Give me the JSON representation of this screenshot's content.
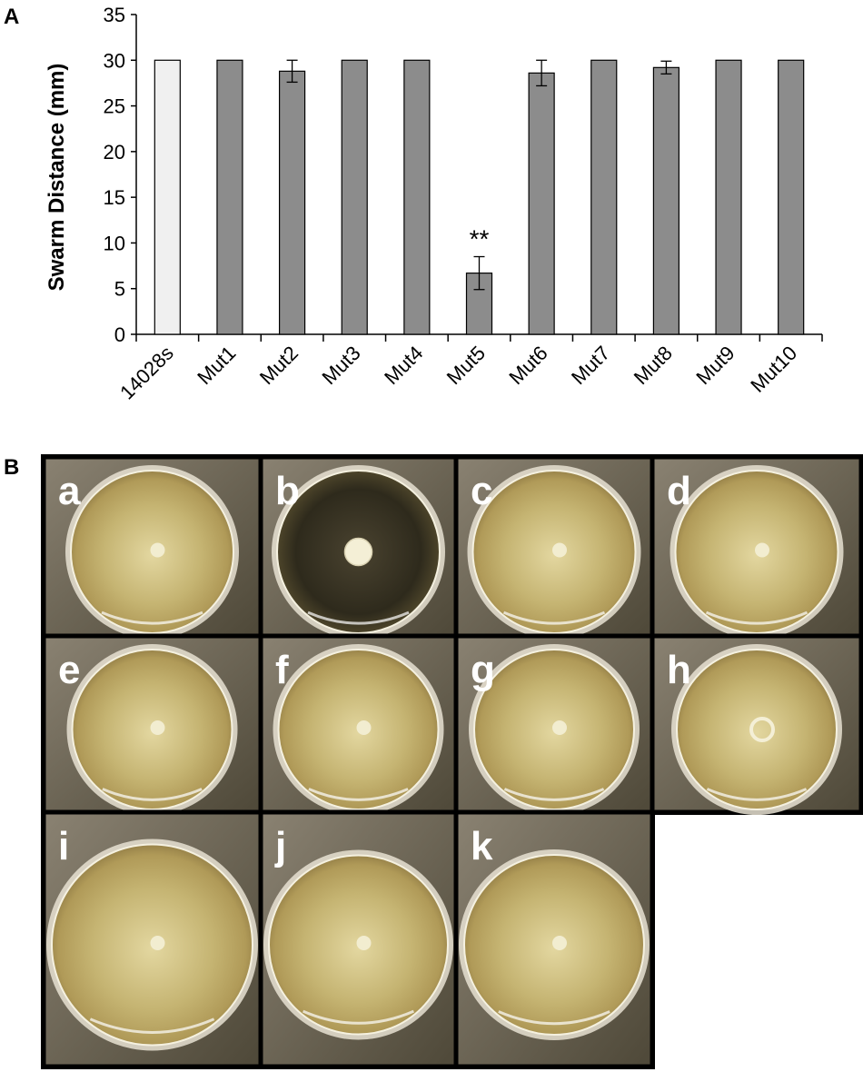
{
  "panel_labels": {
    "chart": "A",
    "photos": "B"
  },
  "chart_data": {
    "type": "bar",
    "title": "",
    "xlabel": "",
    "ylabel": "Swarm Distance (mm)",
    "ylim": [
      0,
      35
    ],
    "yticks": [
      0,
      5,
      10,
      15,
      20,
      25,
      30,
      35
    ],
    "categories": [
      "14028s",
      "Mut1",
      "Mut2",
      "Mut3",
      "Mut4",
      "Mut5",
      "Mut6",
      "Mut7",
      "Mut8",
      "Mut9",
      "Mut10"
    ],
    "values": [
      30,
      30,
      28.8,
      30,
      30,
      6.7,
      28.6,
      30,
      29.2,
      30,
      30
    ],
    "errors": [
      0,
      0,
      1.2,
      0,
      0,
      1.8,
      1.4,
      0,
      0.7,
      0,
      0
    ],
    "bar_colors": [
      "#f0f0f0",
      "#8c8c8c",
      "#8c8c8c",
      "#8c8c8c",
      "#8c8c8c",
      "#8c8c8c",
      "#8c8c8c",
      "#8c8c8c",
      "#8c8c8c",
      "#8c8c8c",
      "#8c8c8c"
    ],
    "annotations": [
      {
        "category": "Mut5",
        "text": "**"
      }
    ],
    "grid": false,
    "legend": "none"
  },
  "wells": [
    {
      "letter": "a",
      "pellet": "small",
      "swarm": true
    },
    {
      "letter": "b",
      "pellet": "large",
      "swarm": false
    },
    {
      "letter": "c",
      "pellet": "small",
      "swarm": true
    },
    {
      "letter": "d",
      "pellet": "small",
      "swarm": true
    },
    {
      "letter": "e",
      "pellet": "small",
      "swarm": true
    },
    {
      "letter": "f",
      "pellet": "small",
      "swarm": true
    },
    {
      "letter": "g",
      "pellet": "small",
      "swarm": true
    },
    {
      "letter": "h",
      "pellet": "ring",
      "swarm": true
    },
    {
      "letter": "i",
      "pellet": "small",
      "swarm": true
    },
    {
      "letter": "j",
      "pellet": "small",
      "swarm": true
    },
    {
      "letter": "k",
      "pellet": "small",
      "swarm": true
    }
  ],
  "colors": {
    "swarm_agar": "#c9b877",
    "swarm_center": "#e6dba8",
    "unswarmed_agar": "#3a3422",
    "colony": "#f4efd6",
    "plate_background": "#6e6652",
    "border": "#000000"
  }
}
